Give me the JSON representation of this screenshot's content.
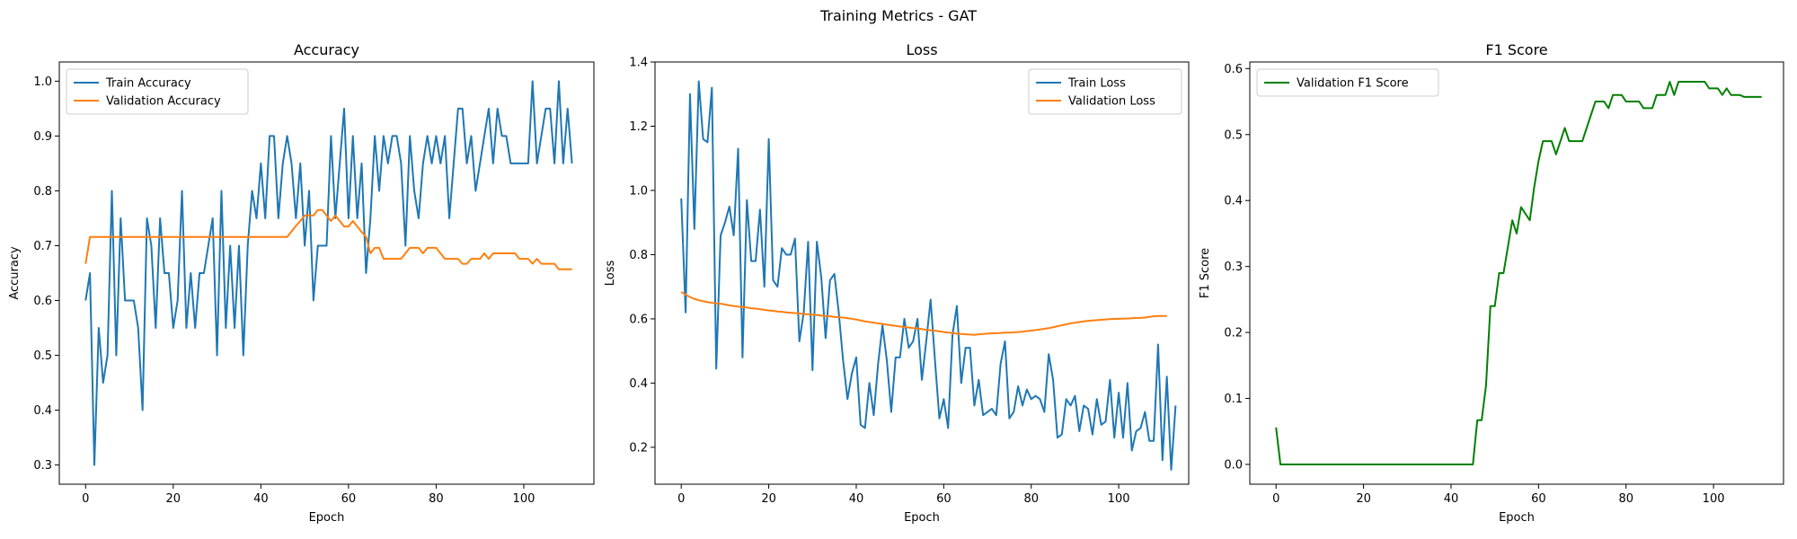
{
  "figure": {
    "suptitle": "Training Metrics - GAT"
  },
  "colors": {
    "blue": "#1f77b4",
    "orange": "#ff7f0e",
    "green": "#008000",
    "axis": "#000000"
  },
  "chart_data": [
    {
      "type": "line",
      "title": "Accuracy",
      "xlabel": "Epoch",
      "ylabel": "Accuracy",
      "xlim": [
        -6,
        116
      ],
      "ylim": [
        0.265,
        1.035
      ],
      "xticks": [
        0,
        20,
        40,
        60,
        80,
        100
      ],
      "yticks": [
        0.3,
        0.4,
        0.5,
        0.6,
        0.7,
        0.8,
        0.9,
        1.0
      ],
      "ytick_labels": [
        "0.3",
        "0.4",
        "0.5",
        "0.6",
        "0.7",
        "0.8",
        "0.9",
        "1.0"
      ],
      "legend": "upper-left",
      "series": [
        {
          "name": "Train Accuracy",
          "color": "#1f77b4",
          "values": [
            0.6,
            0.65,
            0.3,
            0.55,
            0.45,
            0.5,
            0.8,
            0.5,
            0.75,
            0.6,
            0.6,
            0.6,
            0.55,
            0.4,
            0.75,
            0.7,
            0.55,
            0.75,
            0.65,
            0.65,
            0.55,
            0.6,
            0.8,
            0.55,
            0.65,
            0.55,
            0.65,
            0.65,
            0.7,
            0.75,
            0.5,
            0.8,
            0.55,
            0.7,
            0.55,
            0.7,
            0.5,
            0.7,
            0.8,
            0.75,
            0.85,
            0.75,
            0.9,
            0.9,
            0.75,
            0.85,
            0.9,
            0.85,
            0.75,
            0.85,
            0.7,
            0.8,
            0.6,
            0.7,
            0.7,
            0.7,
            0.9,
            0.75,
            0.85,
            0.95,
            0.75,
            0.9,
            0.75,
            0.85,
            0.65,
            0.75,
            0.9,
            0.8,
            0.9,
            0.85,
            0.9,
            0.9,
            0.85,
            0.7,
            0.9,
            0.8,
            0.75,
            0.85,
            0.9,
            0.85,
            0.9,
            0.85,
            0.9,
            0.75,
            0.85,
            0.95,
            0.95,
            0.85,
            0.9,
            0.8,
            0.85,
            0.9,
            0.95,
            0.85,
            0.95,
            0.9,
            0.9,
            0.85,
            0.85,
            0.85,
            0.85,
            0.85,
            1.0,
            0.85,
            0.9,
            0.95,
            0.95,
            0.85,
            1.0,
            0.85,
            0.95,
            0.85
          ]
        },
        {
          "name": "Validation Accuracy",
          "color": "#ff7f0e",
          "values": [
            0.667,
            0.716,
            0.716,
            0.716,
            0.716,
            0.716,
            0.716,
            0.716,
            0.716,
            0.716,
            0.716,
            0.716,
            0.716,
            0.716,
            0.716,
            0.716,
            0.716,
            0.716,
            0.716,
            0.716,
            0.716,
            0.716,
            0.716,
            0.716,
            0.716,
            0.716,
            0.716,
            0.716,
            0.716,
            0.716,
            0.716,
            0.716,
            0.716,
            0.716,
            0.716,
            0.716,
            0.716,
            0.716,
            0.716,
            0.716,
            0.716,
            0.716,
            0.716,
            0.716,
            0.716,
            0.716,
            0.716,
            0.726,
            0.736,
            0.745,
            0.755,
            0.755,
            0.755,
            0.765,
            0.765,
            0.755,
            0.745,
            0.755,
            0.745,
            0.735,
            0.735,
            0.745,
            0.735,
            0.725,
            0.716,
            0.686,
            0.696,
            0.696,
            0.676,
            0.676,
            0.676,
            0.676,
            0.676,
            0.686,
            0.696,
            0.696,
            0.696,
            0.686,
            0.696,
            0.696,
            0.696,
            0.686,
            0.676,
            0.676,
            0.676,
            0.676,
            0.667,
            0.667,
            0.676,
            0.676,
            0.676,
            0.686,
            0.676,
            0.686,
            0.686,
            0.686,
            0.686,
            0.686,
            0.686,
            0.676,
            0.676,
            0.676,
            0.667,
            0.676,
            0.667,
            0.667,
            0.667,
            0.667,
            0.657,
            0.657,
            0.657,
            0.657
          ]
        }
      ]
    },
    {
      "type": "line",
      "title": "Loss",
      "xlabel": "Epoch",
      "ylabel": "Loss",
      "xlim": [
        -6,
        116
      ],
      "ylim": [
        0.085,
        1.4
      ],
      "xticks": [
        0,
        20,
        40,
        60,
        80,
        100
      ],
      "yticks": [
        0.2,
        0.4,
        0.6,
        0.8,
        1.0,
        1.2,
        1.4
      ],
      "ytick_labels": [
        "0.2",
        "0.4",
        "0.6",
        "0.8",
        "1.0",
        "1.2",
        "1.4"
      ],
      "legend": "upper-right",
      "series": [
        {
          "name": "Train Loss",
          "color": "#1f77b4",
          "values": [
            0.975,
            0.62,
            1.3,
            0.88,
            1.34,
            1.16,
            1.15,
            1.32,
            0.445,
            0.86,
            0.9,
            0.95,
            0.86,
            1.13,
            0.48,
            0.97,
            0.78,
            0.78,
            0.94,
            0.7,
            1.16,
            0.72,
            0.7,
            0.82,
            0.8,
            0.8,
            0.85,
            0.53,
            0.62,
            0.84,
            0.44,
            0.84,
            0.73,
            0.54,
            0.72,
            0.74,
            0.62,
            0.47,
            0.35,
            0.43,
            0.48,
            0.27,
            0.26,
            0.4,
            0.3,
            0.46,
            0.58,
            0.47,
            0.31,
            0.48,
            0.48,
            0.6,
            0.51,
            0.53,
            0.6,
            0.41,
            0.53,
            0.66,
            0.47,
            0.29,
            0.35,
            0.26,
            0.55,
            0.64,
            0.4,
            0.51,
            0.51,
            0.33,
            0.41,
            0.3,
            0.31,
            0.32,
            0.3,
            0.46,
            0.53,
            0.29,
            0.31,
            0.39,
            0.33,
            0.38,
            0.35,
            0.36,
            0.35,
            0.31,
            0.49,
            0.41,
            0.23,
            0.24,
            0.35,
            0.33,
            0.36,
            0.25,
            0.33,
            0.32,
            0.24,
            0.35,
            0.27,
            0.28,
            0.41,
            0.23,
            0.37,
            0.23,
            0.4,
            0.19,
            0.25,
            0.26,
            0.31,
            0.22,
            0.22,
            0.52,
            0.16,
            0.42,
            0.13,
            0.33
          ]
        },
        {
          "name": "Validation Loss",
          "color": "#ff7f0e",
          "values": [
            0.684,
            0.675,
            0.668,
            0.662,
            0.658,
            0.655,
            0.652,
            0.65,
            0.648,
            0.647,
            0.645,
            0.642,
            0.64,
            0.638,
            0.637,
            0.635,
            0.633,
            0.632,
            0.63,
            0.628,
            0.626,
            0.625,
            0.623,
            0.622,
            0.62,
            0.619,
            0.618,
            0.617,
            0.615,
            0.614,
            0.613,
            0.612,
            0.61,
            0.609,
            0.608,
            0.606,
            0.605,
            0.604,
            0.602,
            0.6,
            0.598,
            0.595,
            0.592,
            0.59,
            0.588,
            0.586,
            0.584,
            0.582,
            0.58,
            0.578,
            0.576,
            0.575,
            0.573,
            0.571,
            0.57,
            0.568,
            0.566,
            0.564,
            0.563,
            0.561,
            0.559,
            0.557,
            0.556,
            0.554,
            0.553,
            0.552,
            0.551,
            0.55,
            0.552,
            0.553,
            0.554,
            0.555,
            0.555,
            0.556,
            0.557,
            0.557,
            0.558,
            0.559,
            0.56,
            0.562,
            0.563,
            0.565,
            0.567,
            0.569,
            0.571,
            0.574,
            0.577,
            0.58,
            0.583,
            0.586,
            0.588,
            0.59,
            0.592,
            0.594,
            0.595,
            0.596,
            0.597,
            0.598,
            0.599,
            0.6,
            0.6,
            0.601,
            0.601,
            0.602,
            0.603,
            0.603,
            0.604,
            0.606,
            0.608,
            0.609,
            0.609,
            0.609
          ]
        }
      ]
    },
    {
      "type": "line",
      "title": "F1 Score",
      "xlabel": "Epoch",
      "ylabel": "F1 Score",
      "xlim": [
        -6,
        116
      ],
      "ylim": [
        -0.03,
        0.61
      ],
      "xticks": [
        0,
        20,
        40,
        60,
        80,
        100
      ],
      "yticks": [
        0.0,
        0.1,
        0.2,
        0.3,
        0.4,
        0.5,
        0.6
      ],
      "ytick_labels": [
        "0.0",
        "0.1",
        "0.2",
        "0.3",
        "0.4",
        "0.5",
        "0.6"
      ],
      "legend": "upper-left",
      "series": [
        {
          "name": "Validation F1 Score",
          "color": "#008000",
          "values": [
            0.056,
            0,
            0,
            0,
            0,
            0,
            0,
            0,
            0,
            0,
            0,
            0,
            0,
            0,
            0,
            0,
            0,
            0,
            0,
            0,
            0,
            0,
            0,
            0,
            0,
            0,
            0,
            0,
            0,
            0,
            0,
            0,
            0,
            0,
            0,
            0,
            0,
            0,
            0,
            0,
            0,
            0,
            0,
            0,
            0,
            0,
            0.067,
            0.067,
            0.12,
            0.24,
            0.24,
            0.29,
            0.29,
            0.33,
            0.37,
            0.35,
            0.39,
            0.38,
            0.37,
            0.42,
            0.46,
            0.49,
            0.49,
            0.49,
            0.47,
            0.49,
            0.51,
            0.49,
            0.49,
            0.49,
            0.49,
            0.51,
            0.53,
            0.55,
            0.55,
            0.55,
            0.54,
            0.56,
            0.56,
            0.56,
            0.55,
            0.55,
            0.55,
            0.55,
            0.54,
            0.54,
            0.54,
            0.56,
            0.56,
            0.56,
            0.58,
            0.56,
            0.58,
            0.58,
            0.58,
            0.58,
            0.58,
            0.58,
            0.58,
            0.57,
            0.57,
            0.57,
            0.56,
            0.57,
            0.56,
            0.56,
            0.56,
            0.557,
            0.557,
            0.557,
            0.557,
            0.557
          ]
        }
      ]
    }
  ]
}
